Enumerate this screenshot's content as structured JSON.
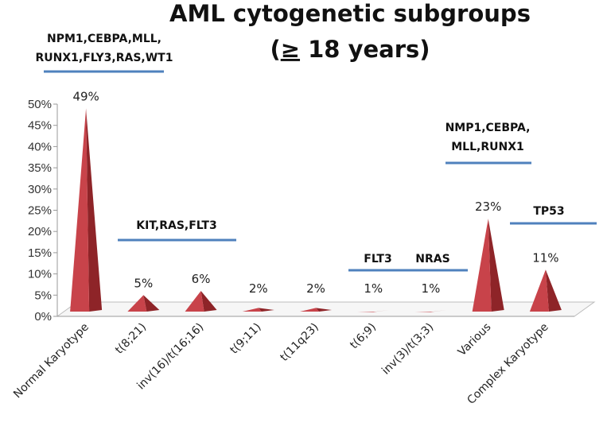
{
  "chart_data": {
    "type": "bar",
    "title_line1": "AML cytogenetic subgroups",
    "title_line2_prefix": "(",
    "title_line2_ge": "≥",
    "title_line2_suffix": " 18 years)",
    "categories": [
      "Normal Karyotype",
      "t(8;21)",
      "inv(16)/t(16;16)",
      "t(9;11)",
      "t(11q23)",
      "t(6;9)",
      "inv(3)/t(3;3)",
      "Various",
      "Complex Karyotype"
    ],
    "values": [
      49,
      5,
      6,
      2,
      2,
      1,
      1,
      23,
      11
    ],
    "data_labels": [
      "49%",
      "5%",
      "6%",
      "2%",
      "2%",
      "1%",
      "1%",
      "23%",
      "11%"
    ],
    "ylim": [
      0,
      50
    ],
    "yticks": [
      "0%",
      "5%",
      "10%",
      "15%",
      "20%",
      "25%",
      "30%",
      "35%",
      "40%",
      "45%",
      "50%"
    ],
    "bar_color": "#c8434a",
    "annotation_line_color": "#4f81bd",
    "annotations": [
      {
        "lines": [
          "NPM1,CEBPA,MLL,",
          "RUNX1,FLY3,RAS,WT1"
        ],
        "from_category": 0,
        "to_category": 0
      },
      {
        "lines": [
          "KIT,RAS,FLT3"
        ],
        "from_category": 1,
        "to_category": 2
      },
      {
        "lines": [
          "FLT3",
          "NRAS"
        ],
        "from_category": 5,
        "to_category": 6
      },
      {
        "lines": [
          "NMP1,CEBPA,",
          "MLL,RUNX1"
        ],
        "from_category": 7,
        "to_category": 7
      },
      {
        "lines": [
          "TP53"
        ],
        "from_category": 8,
        "to_category": 8
      }
    ]
  }
}
